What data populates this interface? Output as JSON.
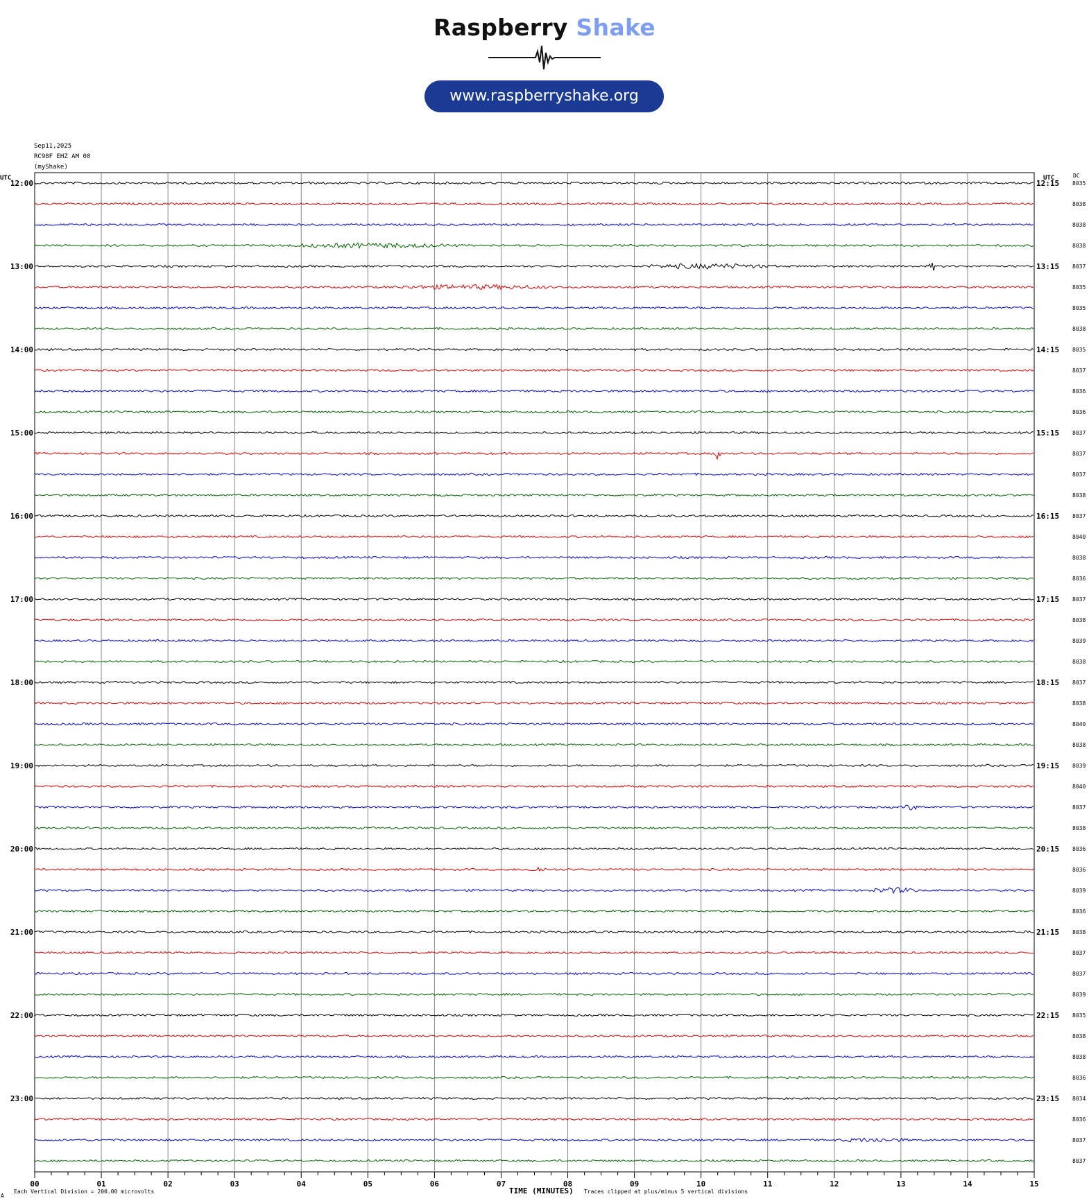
{
  "header": {
    "logo_word1": "Raspberry",
    "logo_word2": "Shake",
    "url": "www.raspberryshake.org",
    "colors": {
      "logo_dark": "#111111",
      "logo_accent": "#7f9ef0",
      "pill": "#1a3a93"
    }
  },
  "plot_info": {
    "date": "Sep11,2025",
    "station": "RC98F EHZ AM 00",
    "network": "(myShake)",
    "left_unit": "UTC",
    "right_unit": "UTC",
    "dc_label": "DC"
  },
  "footer": {
    "scale_note": "Each Vertical Division =  200.00 microvolts",
    "xlabel": "TIME (MINUTES)",
    "clip_note": "Traces clipped at plus/minus 5 vertical divisions",
    "corner_mark": "A"
  },
  "chart_data": {
    "type": "line",
    "title": "",
    "xlabel": "TIME (MINUTES)",
    "ylabel": "",
    "xlim": [
      0,
      15
    ],
    "x_ticks": [
      "00",
      "01",
      "02",
      "03",
      "04",
      "05",
      "06",
      "07",
      "08",
      "09",
      "10",
      "11",
      "12",
      "13",
      "14",
      "15"
    ],
    "grid": true,
    "trace_colors": [
      "#000000",
      "#dd0000",
      "#0000cc",
      "#006400"
    ],
    "left_hour_labels": [
      "12:00",
      "13:00",
      "14:00",
      "15:00",
      "16:00",
      "17:00",
      "18:00",
      "19:00",
      "20:00",
      "21:00",
      "22:00",
      "23:00"
    ],
    "right_hour_labels": [
      "12:15",
      "13:15",
      "14:15",
      "15:15",
      "16:15",
      "17:15",
      "18:15",
      "19:15",
      "20:15",
      "21:15",
      "22:15",
      "23:15"
    ],
    "dc_values": [
      "8035",
      "8038",
      "8038",
      "8038",
      "8037",
      "8035",
      "8035",
      "8038",
      "8035",
      "8037",
      "8036",
      "8036",
      "8037",
      "8037",
      "8037",
      "8038",
      "8037",
      "8040",
      "8038",
      "8036",
      "8037",
      "8038",
      "8039",
      "8038",
      "8037",
      "8038",
      "8040",
      "8038",
      "8039",
      "8040",
      "8037",
      "8038",
      "8036",
      "8036",
      "8039",
      "8036",
      "8038",
      "8037",
      "8037",
      "8039",
      "8035",
      "8038",
      "8038",
      "8036",
      "8034",
      "8036",
      "8037",
      "8037"
    ],
    "events": [
      {
        "row": 3,
        "start_min": 3.6,
        "end_min": 6.5,
        "amp": 2.2
      },
      {
        "row": 4,
        "start_min": 9.0,
        "end_min": 11.2,
        "amp": 2.5
      },
      {
        "row": 4,
        "start_min": 13.4,
        "end_min": 13.55,
        "amp": 5
      },
      {
        "row": 5,
        "start_min": 5.2,
        "end_min": 8.0,
        "amp": 2.2
      },
      {
        "row": 13,
        "start_min": 10.2,
        "end_min": 10.3,
        "amp": 14
      },
      {
        "row": 30,
        "start_min": 13.0,
        "end_min": 13.3,
        "amp": 3
      },
      {
        "row": 33,
        "start_min": 7.4,
        "end_min": 7.7,
        "amp": 3
      },
      {
        "row": 34,
        "start_min": 12.5,
        "end_min": 13.3,
        "amp": 3
      },
      {
        "row": 46,
        "start_min": 12.0,
        "end_min": 13.2,
        "amp": 2
      }
    ]
  }
}
